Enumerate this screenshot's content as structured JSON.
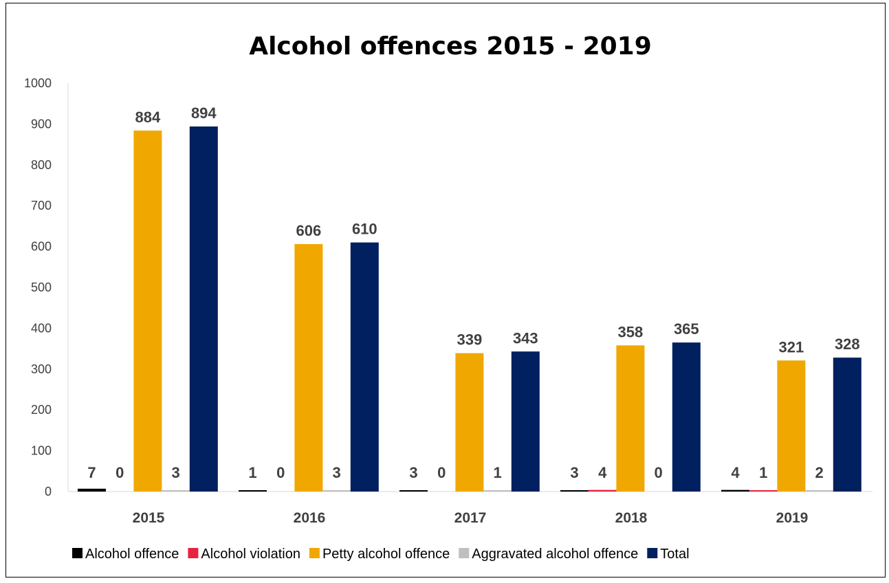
{
  "chart_data": {
    "type": "bar",
    "title": "Alcohol offences 2015 - 2019",
    "categories": [
      "2015",
      "2016",
      "2017",
      "2018",
      "2019"
    ],
    "ylim": [
      0,
      1000
    ],
    "yticks": [
      0,
      100,
      200,
      300,
      400,
      500,
      600,
      700,
      800,
      900,
      1000
    ],
    "grid": false,
    "legend_position": "bottom",
    "series": [
      {
        "name": "Alcohol offence",
        "color": "#000000",
        "values": [
          7,
          1,
          3,
          3,
          4
        ]
      },
      {
        "name": "Alcohol violation",
        "color": "#e8233f",
        "values": [
          0,
          0,
          0,
          4,
          1
        ]
      },
      {
        "name": "Petty alcohol offence",
        "color": "#f0a800",
        "values": [
          884,
          606,
          339,
          358,
          321
        ]
      },
      {
        "name": "Aggravated alcohol offence",
        "color": "#bfbfbf",
        "values": [
          3,
          3,
          1,
          0,
          2
        ]
      },
      {
        "name": "Total",
        "color": "#002060",
        "values": [
          894,
          610,
          343,
          365,
          328
        ]
      }
    ]
  }
}
